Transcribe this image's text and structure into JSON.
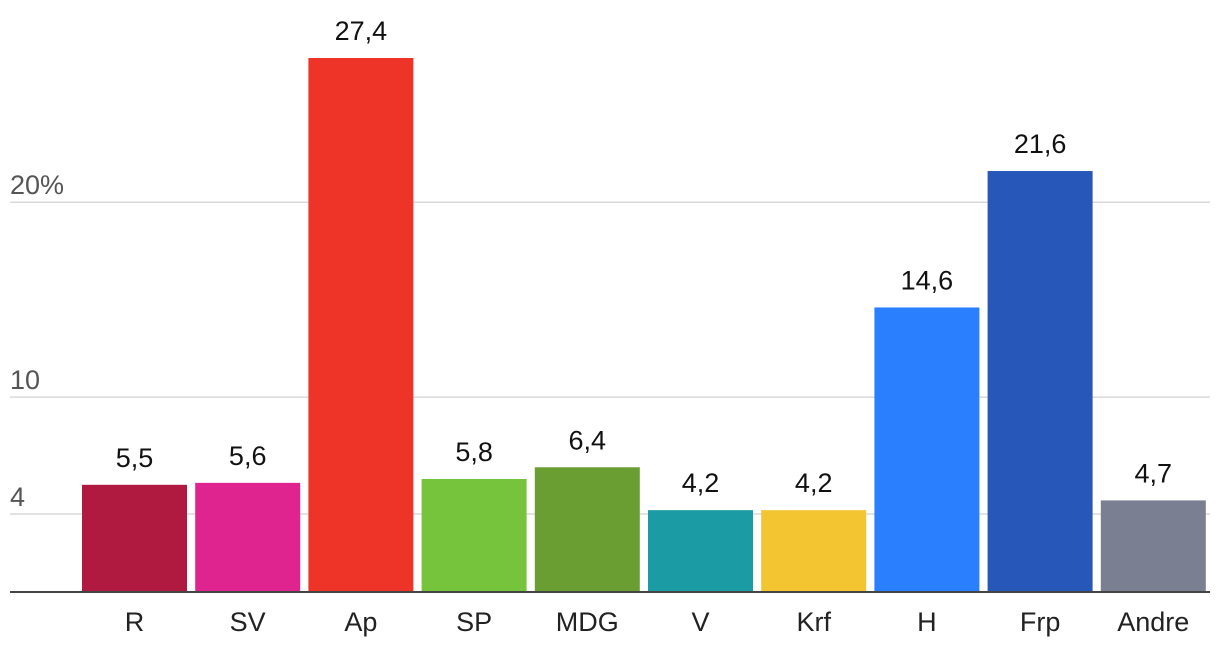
{
  "chart_data": {
    "type": "bar",
    "categories": [
      "R",
      "SV",
      "Ap",
      "SP",
      "MDG",
      "V",
      "Krf",
      "H",
      "Frp",
      "Andre"
    ],
    "values": [
      5.5,
      5.6,
      27.4,
      5.8,
      6.4,
      4.2,
      4.2,
      14.6,
      21.6,
      4.7
    ],
    "value_labels": [
      "5,5",
      "5,6",
      "27,4",
      "5,8",
      "6,4",
      "4,2",
      "4,2",
      "14,6",
      "21,6",
      "4,7"
    ],
    "colors": [
      "#b01a41",
      "#e0248f",
      "#ee3329",
      "#76c43b",
      "#6b9e32",
      "#1b9ba3",
      "#f2c531",
      "#2a7fff",
      "#2757b8",
      "#7a7f92"
    ],
    "y_ticks": [
      {
        "value": 4,
        "label": "4"
      },
      {
        "value": 10,
        "label": "10"
      },
      {
        "value": 20,
        "label": "20%"
      }
    ],
    "ylim": [
      0,
      27.4
    ],
    "grid": true,
    "title": "",
    "xlabel": "",
    "ylabel": ""
  }
}
